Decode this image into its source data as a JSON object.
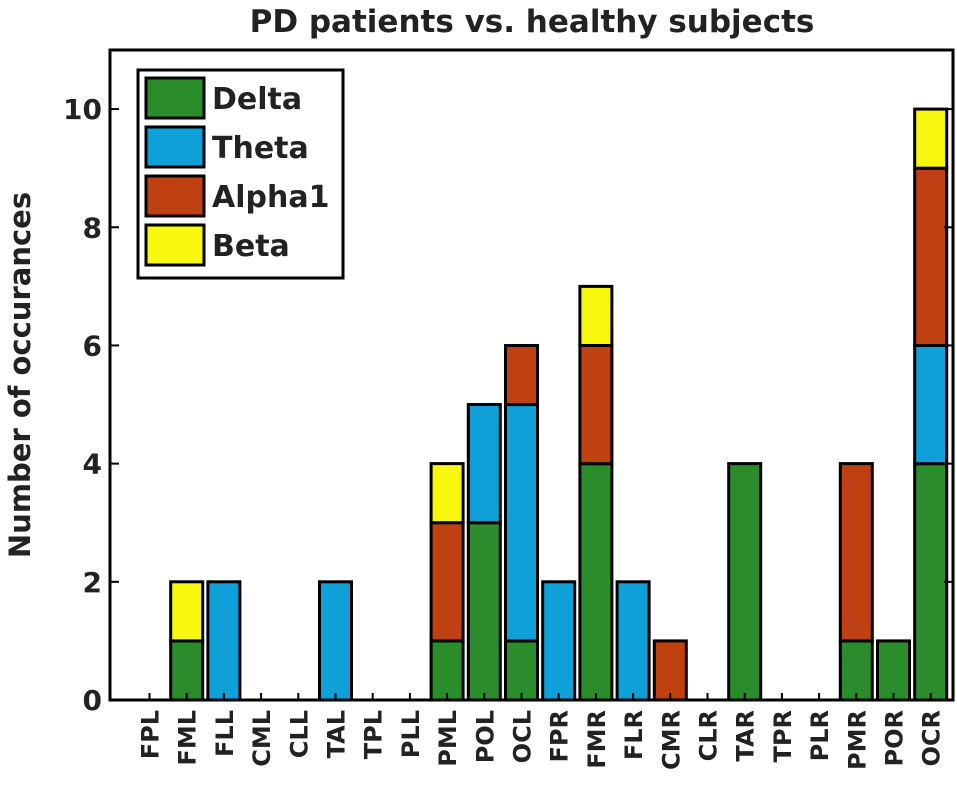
{
  "chart_data": {
    "type": "bar",
    "stacked": true,
    "title": "PD patients vs. healthy subjects",
    "xlabel": "",
    "ylabel": "Number of occurances",
    "ylim": [
      0,
      11
    ],
    "yticks": [
      0,
      2,
      4,
      6,
      8,
      10
    ],
    "grid": false,
    "legend_position": "top-left",
    "categories": [
      "FPL",
      "FML",
      "FLL",
      "CML",
      "CLL",
      "TAL",
      "TPL",
      "PLL",
      "PML",
      "POL",
      "OCL",
      "FPR",
      "FMR",
      "FLR",
      "CMR",
      "CLR",
      "TAR",
      "TPR",
      "PLR",
      "PMR",
      "POR",
      "OCR"
    ],
    "series": [
      {
        "name": "Delta",
        "color": "#2a8c2a",
        "values": [
          0,
          1,
          0,
          0,
          0,
          0,
          0,
          0,
          1,
          3,
          1,
          0,
          4,
          0,
          0,
          0,
          4,
          0,
          0,
          1,
          1,
          4
        ]
      },
      {
        "name": "Theta",
        "color": "#0ea0d6",
        "values": [
          0,
          0,
          2,
          0,
          0,
          2,
          0,
          0,
          0,
          2,
          4,
          2,
          0,
          2,
          0,
          0,
          0,
          0,
          0,
          0,
          0,
          2
        ]
      },
      {
        "name": "Alpha1",
        "color": "#bf4010",
        "values": [
          0,
          0,
          0,
          0,
          0,
          0,
          0,
          0,
          2,
          0,
          1,
          0,
          2,
          0,
          1,
          0,
          0,
          0,
          0,
          3,
          0,
          3
        ]
      },
      {
        "name": "Beta",
        "color": "#f8f80f",
        "values": [
          0,
          1,
          0,
          0,
          0,
          0,
          0,
          0,
          1,
          0,
          0,
          0,
          1,
          0,
          0,
          0,
          0,
          0,
          0,
          0,
          0,
          1
        ]
      }
    ]
  }
}
